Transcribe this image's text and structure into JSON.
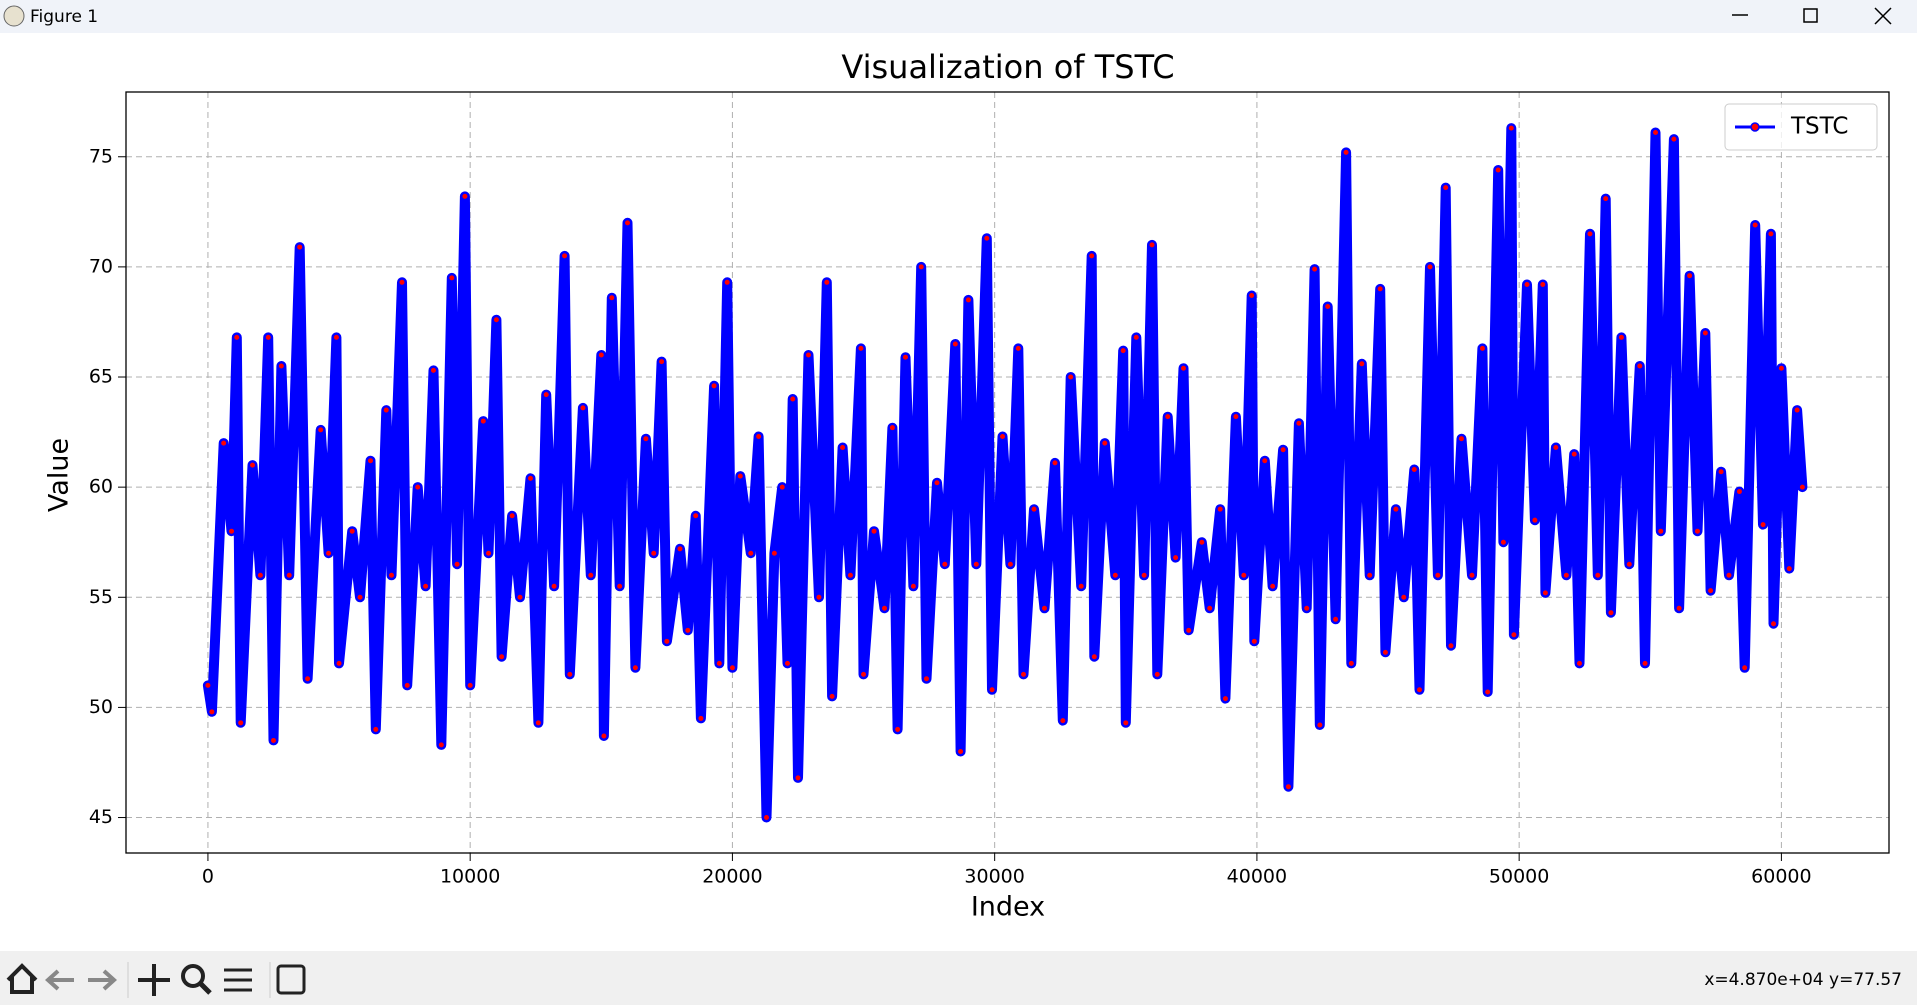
{
  "window": {
    "title": "Figure 1",
    "coordinates": "x=4.870e+04 y=77.57"
  },
  "chart_data": {
    "type": "line",
    "title": "Visualization of TSTC",
    "x_label": "Index",
    "y_label": "Value",
    "x": [
      0,
      150,
      600,
      900,
      1100,
      1250,
      1700,
      2000,
      2300,
      2500,
      2800,
      3100,
      3500,
      3800,
      4300,
      4600,
      4900,
      5000,
      5500,
      5800,
      6200,
      6400,
      6800,
      7000,
      7400,
      7600,
      8000,
      8300,
      8600,
      8900,
      9300,
      9500,
      9800,
      10000,
      10500,
      10700,
      11000,
      11200,
      11600,
      11900,
      12300,
      12600,
      12900,
      13200,
      13600,
      13800,
      14300,
      14600,
      15000,
      15100,
      15400,
      15700,
      16000,
      16300,
      16700,
      17000,
      17300,
      17500,
      18000,
      18300,
      18600,
      18800,
      19300,
      19500,
      19800,
      20000,
      20300,
      20700,
      21000,
      21300,
      21600,
      21900,
      22100,
      22300,
      22500,
      22900,
      23300,
      23600,
      23800,
      24200,
      24500,
      24900,
      25000,
      25400,
      25800,
      26100,
      26300,
      26600,
      26900,
      27200,
      27400,
      27800,
      28100,
      28500,
      28700,
      29000,
      29300,
      29700,
      29900,
      30300,
      30600,
      30900,
      31100,
      31500,
      31900,
      32300,
      32600,
      32900,
      33300,
      33700,
      33800,
      34200,
      34600,
      34900,
      35000,
      35400,
      35700,
      36000,
      36200,
      36600,
      36900,
      37200,
      37400,
      37900,
      38200,
      38600,
      38800,
      39200,
      39500,
      39800,
      39900,
      40300,
      40600,
      41000,
      41200,
      41600,
      41900,
      42200,
      42400,
      42700,
      43000,
      43400,
      43600,
      44000,
      44300,
      44700,
      44900,
      45300,
      45600,
      46000,
      46200,
      46600,
      46900,
      47200,
      47400,
      47800,
      48200,
      48600,
      48800,
      49200,
      49400,
      49700,
      49800,
      50300,
      50600,
      50900,
      51000,
      51400,
      51800,
      52100,
      52300,
      52700,
      53000,
      53300,
      53500,
      53900,
      54200,
      54600,
      54800,
      55200,
      55400,
      55900,
      56100,
      56500,
      56800,
      57100,
      57300,
      57700,
      58000,
      58400,
      58600,
      59000,
      59300,
      59600,
      59700,
      60000,
      60300,
      60600,
      60800
    ],
    "series": [
      {
        "name": "TSTC",
        "color": "#0000ff",
        "marker_color": "#ff0000",
        "values": [
          51,
          49.8,
          62,
          58,
          66.8,
          49.3,
          61,
          56,
          66.8,
          48.5,
          65.5,
          56,
          70.9,
          51.3,
          62.6,
          57,
          66.8,
          52,
          58,
          55,
          61.2,
          49,
          63.5,
          56,
          69.3,
          51,
          60,
          55.5,
          65.3,
          48.3,
          69.5,
          56.5,
          73.2,
          51,
          63,
          57,
          67.6,
          52.3,
          58.7,
          55,
          60.4,
          49.3,
          64.2,
          55.5,
          70.5,
          51.5,
          63.6,
          56,
          66,
          48.7,
          68.6,
          55.5,
          72,
          51.8,
          62.2,
          57,
          65.7,
          53,
          57.2,
          53.5,
          58.7,
          49.5,
          64.6,
          52,
          69.3,
          51.8,
          60.5,
          57,
          62.3,
          45,
          57,
          60,
          52,
          64,
          46.8,
          66,
          55,
          69.3,
          50.5,
          61.8,
          56,
          66.3,
          51.5,
          58,
          54.5,
          62.7,
          49,
          65.9,
          55.5,
          70,
          51.3,
          60.2,
          56.5,
          66.5,
          48,
          68.5,
          56.5,
          71.3,
          50.8,
          62.3,
          56.5,
          66.3,
          51.5,
          59,
          54.5,
          61.1,
          49.4,
          65,
          55.5,
          70.5,
          52.3,
          62,
          56,
          66.2,
          49.3,
          66.8,
          56,
          71,
          51.5,
          63.2,
          56.8,
          65.4,
          53.5,
          57.5,
          54.5,
          59,
          50.4,
          63.2,
          56,
          68.7,
          53,
          61.2,
          55.5,
          61.7,
          46.4,
          62.9,
          54.5,
          69.9,
          49.2,
          68.2,
          54,
          75.2,
          52,
          65.6,
          56,
          69,
          52.5,
          59,
          55,
          60.8,
          50.8,
          70,
          56,
          73.6,
          52.8,
          62.2,
          56,
          66.3,
          50.7,
          74.4,
          57.5,
          76.3,
          53.3,
          69.2,
          58.5,
          69.2,
          55.2,
          61.8,
          56,
          61.5,
          52,
          71.5,
          56,
          73.1,
          54.3,
          66.8,
          56.5,
          65.5,
          52,
          76.1,
          58,
          75.8,
          54.5,
          69.6,
          58,
          67,
          55.3,
          60.7,
          56,
          59.8,
          51.8,
          71.9,
          58.3,
          71.5,
          53.8,
          65.4,
          56.3,
          63.5,
          60
        ]
      }
    ],
    "xlim": [
      -3124,
      64103
    ],
    "ylim": [
      43.39,
      77.94
    ],
    "xticks": [
      0,
      10000,
      20000,
      30000,
      40000,
      50000,
      60000
    ],
    "yticks": [
      45,
      50,
      55,
      60,
      65,
      70,
      75
    ],
    "grid": true,
    "legend": "upper right"
  }
}
